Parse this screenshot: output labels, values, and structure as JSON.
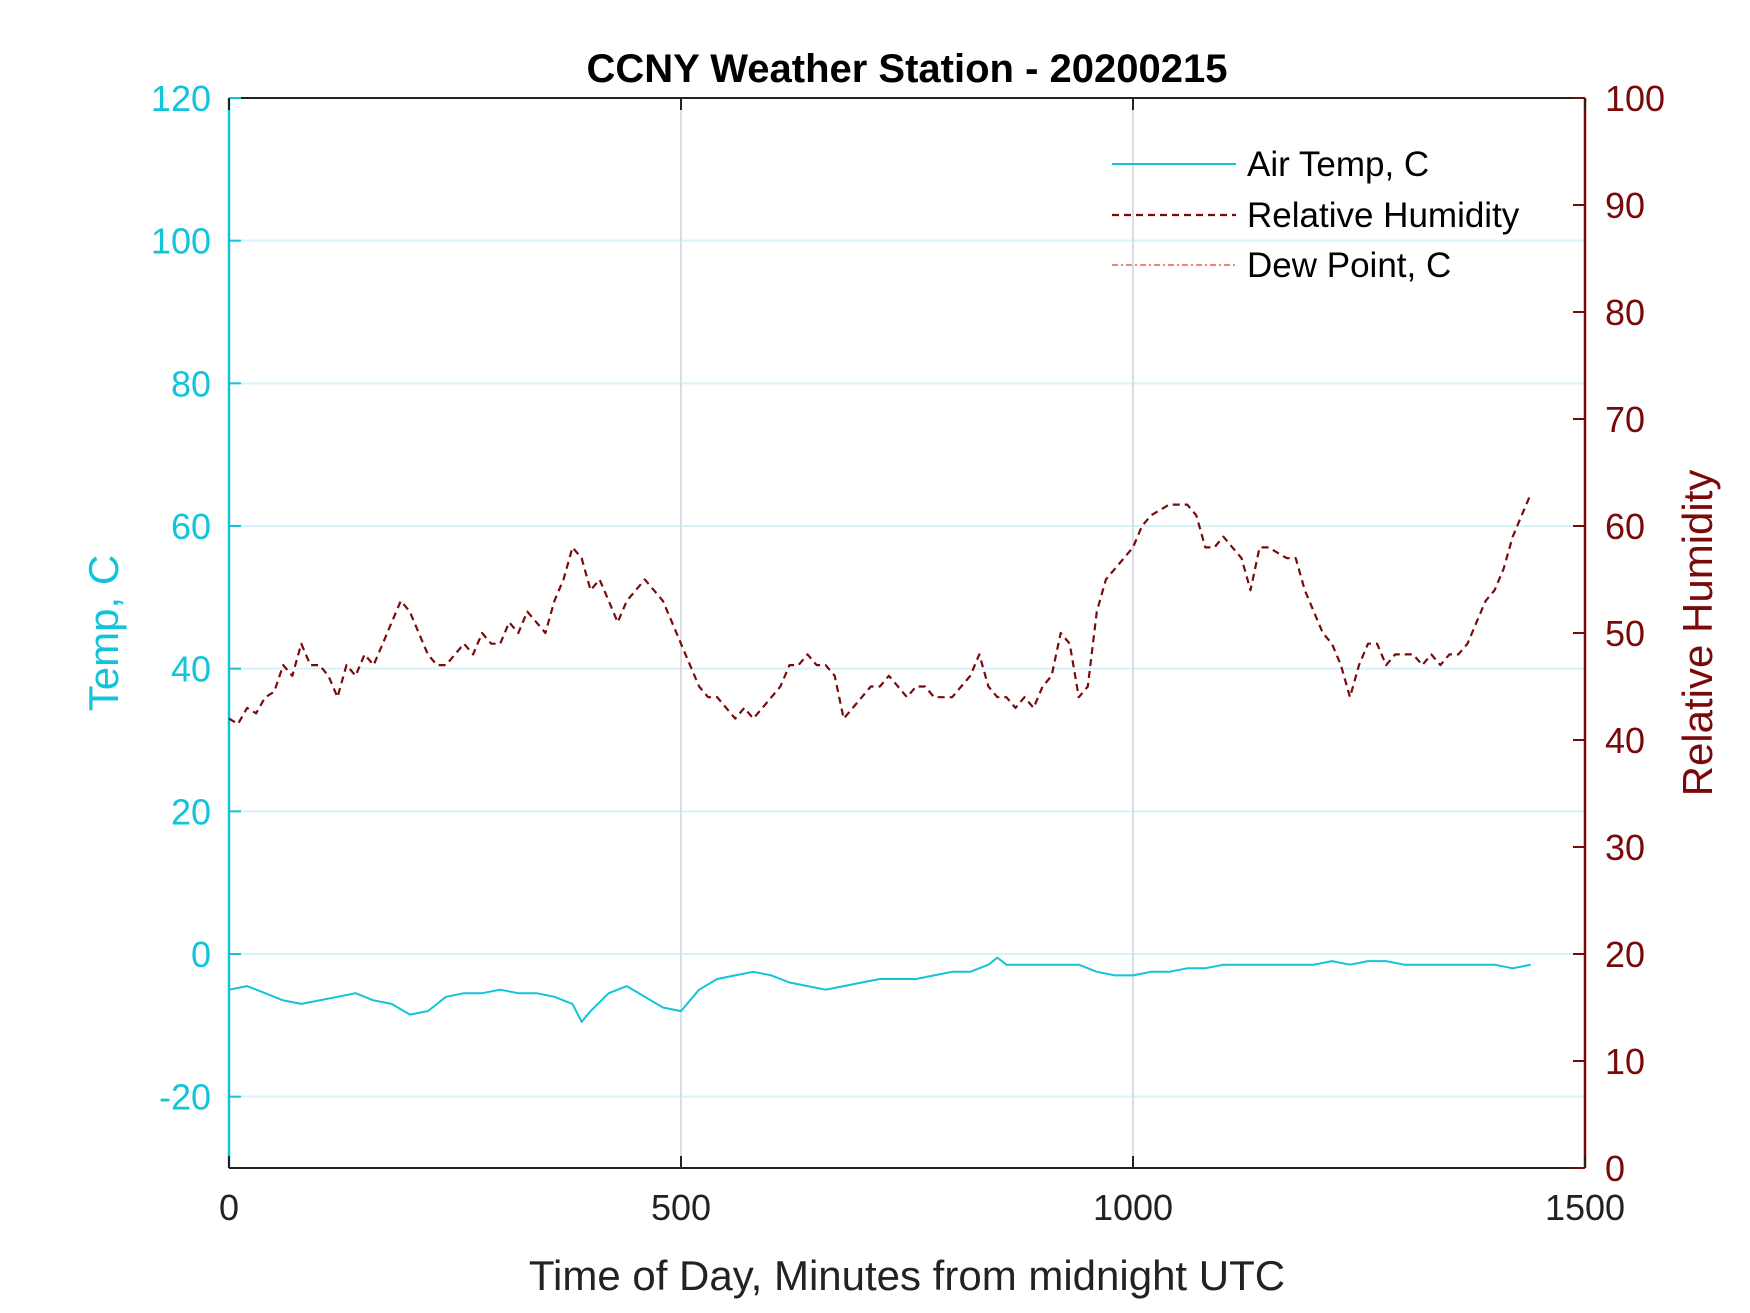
{
  "chart_data": {
    "type": "line",
    "title": "CCNY Weather Station - 20200215",
    "xlabel": "Time of Day, Minutes from midnight UTC",
    "ylabel_left": "Temp, C",
    "ylabel_right": "Relative Humidity",
    "xlim": [
      0,
      1500
    ],
    "ylim_left": [
      -30,
      120
    ],
    "ylim_right": [
      0,
      100
    ],
    "x_ticks": [
      "0",
      "500",
      "1000",
      "1500"
    ],
    "y_left_ticks": [
      "-20",
      "0",
      "20",
      "40",
      "60",
      "80",
      "100",
      "120"
    ],
    "y_right_ticks": [
      "0",
      "10",
      "20",
      "30",
      "40",
      "50",
      "60",
      "70",
      "80",
      "90",
      "100"
    ],
    "grid": true,
    "legend_position": "top-right",
    "colors": {
      "temp": "#12c4d8",
      "humidity": "#7a0a0a",
      "dewpoint": "#f05a4a",
      "grid_h": "#d6f3f8",
      "grid_v": "#d9dde6"
    },
    "series": [
      {
        "name": "Air Temp, C",
        "axis": "left",
        "style": "solid",
        "x": [
          0,
          20,
          40,
          60,
          80,
          100,
          120,
          140,
          160,
          180,
          200,
          220,
          240,
          260,
          280,
          300,
          320,
          340,
          360,
          380,
          390,
          400,
          420,
          440,
          460,
          480,
          500,
          520,
          540,
          560,
          580,
          600,
          620,
          640,
          660,
          680,
          700,
          720,
          740,
          760,
          780,
          800,
          820,
          840,
          850,
          860,
          880,
          900,
          920,
          940,
          960,
          980,
          1000,
          1020,
          1040,
          1060,
          1080,
          1100,
          1120,
          1140,
          1160,
          1180,
          1200,
          1220,
          1240,
          1260,
          1280,
          1300,
          1320,
          1340,
          1360,
          1380,
          1400,
          1420,
          1440
        ],
        "y": [
          -5,
          -4.5,
          -5.5,
          -6.5,
          -7,
          -6.5,
          -6,
          -5.5,
          -6.5,
          -7,
          -8.5,
          -8,
          -6,
          -5.5,
          -5.5,
          -5,
          -5.5,
          -5.5,
          -6,
          -7,
          -9.5,
          -8,
          -5.5,
          -4.5,
          -6,
          -7.5,
          -8,
          -5,
          -3.5,
          -3,
          -2.5,
          -3,
          -4,
          -4.5,
          -5,
          -4.5,
          -4,
          -3.5,
          -3.5,
          -3.5,
          -3,
          -2.5,
          -2.5,
          -1.5,
          -0.5,
          -1.5,
          -1.5,
          -1.5,
          -1.5,
          -1.5,
          -2.5,
          -3,
          -3,
          -2.5,
          -2.5,
          -2,
          -2,
          -1.5,
          -1.5,
          -1.5,
          -1.5,
          -1.5,
          -1.5,
          -1,
          -1.5,
          -1,
          -1,
          -1.5,
          -1.5,
          -1.5,
          -1.5,
          -1.5,
          -1.5,
          -2,
          -1.5
        ]
      },
      {
        "name": "Relative Humidity",
        "axis": "right",
        "style": "dashed",
        "x": [
          0,
          10,
          20,
          30,
          40,
          50,
          60,
          70,
          80,
          90,
          100,
          110,
          120,
          130,
          140,
          150,
          160,
          170,
          180,
          190,
          200,
          210,
          220,
          230,
          240,
          250,
          260,
          270,
          280,
          290,
          300,
          310,
          320,
          330,
          340,
          350,
          360,
          370,
          380,
          390,
          400,
          410,
          420,
          430,
          440,
          450,
          460,
          470,
          480,
          490,
          500,
          510,
          520,
          530,
          540,
          550,
          560,
          570,
          580,
          590,
          600,
          610,
          620,
          630,
          640,
          650,
          660,
          670,
          680,
          690,
          700,
          710,
          720,
          730,
          740,
          750,
          760,
          770,
          780,
          790,
          800,
          810,
          820,
          830,
          840,
          850,
          860,
          870,
          880,
          890,
          900,
          910,
          920,
          930,
          940,
          950,
          960,
          970,
          980,
          990,
          1000,
          1010,
          1020,
          1030,
          1040,
          1050,
          1060,
          1070,
          1080,
          1090,
          1100,
          1110,
          1120,
          1130,
          1140,
          1150,
          1160,
          1170,
          1180,
          1190,
          1200,
          1210,
          1220,
          1230,
          1240,
          1250,
          1260,
          1270,
          1280,
          1290,
          1300,
          1310,
          1320,
          1330,
          1340,
          1350,
          1360,
          1370,
          1380,
          1390,
          1400,
          1410,
          1420,
          1430,
          1440
        ],
        "y": [
          42,
          41.5,
          43,
          42.5,
          44,
          44.5,
          47,
          46,
          49,
          47,
          47,
          46,
          44,
          47,
          46,
          48,
          47,
          49,
          51,
          53,
          52,
          50,
          48,
          47,
          47,
          48,
          49,
          48,
          50,
          49,
          49,
          51,
          50,
          52,
          51,
          50,
          53,
          55,
          58,
          57,
          54,
          55,
          53,
          51,
          53,
          54,
          55,
          54,
          53,
          51,
          49,
          47,
          45,
          44,
          44,
          43,
          42,
          43,
          42,
          43,
          44,
          45,
          47,
          47,
          48,
          47,
          47,
          46,
          42,
          43,
          44,
          45,
          45,
          46,
          45,
          44,
          45,
          45,
          44,
          44,
          44,
          45,
          46,
          48,
          45,
          44,
          44,
          43,
          44,
          43,
          45,
          46,
          50,
          49,
          44,
          45,
          52,
          55,
          56,
          57,
          58,
          60,
          61,
          61.5,
          62,
          62,
          62,
          61,
          58,
          58,
          59,
          58,
          57,
          54,
          58,
          58,
          57.5,
          57,
          57,
          54,
          52,
          50,
          49,
          47,
          44,
          47,
          49,
          49,
          47,
          48,
          48,
          48,
          47,
          48,
          47,
          48,
          48,
          49,
          51,
          53,
          54,
          56,
          59,
          61,
          63
        ]
      },
      {
        "name": "Dew Point, C",
        "axis": "left",
        "style": "dashdot",
        "x": [],
        "y": []
      }
    ]
  }
}
